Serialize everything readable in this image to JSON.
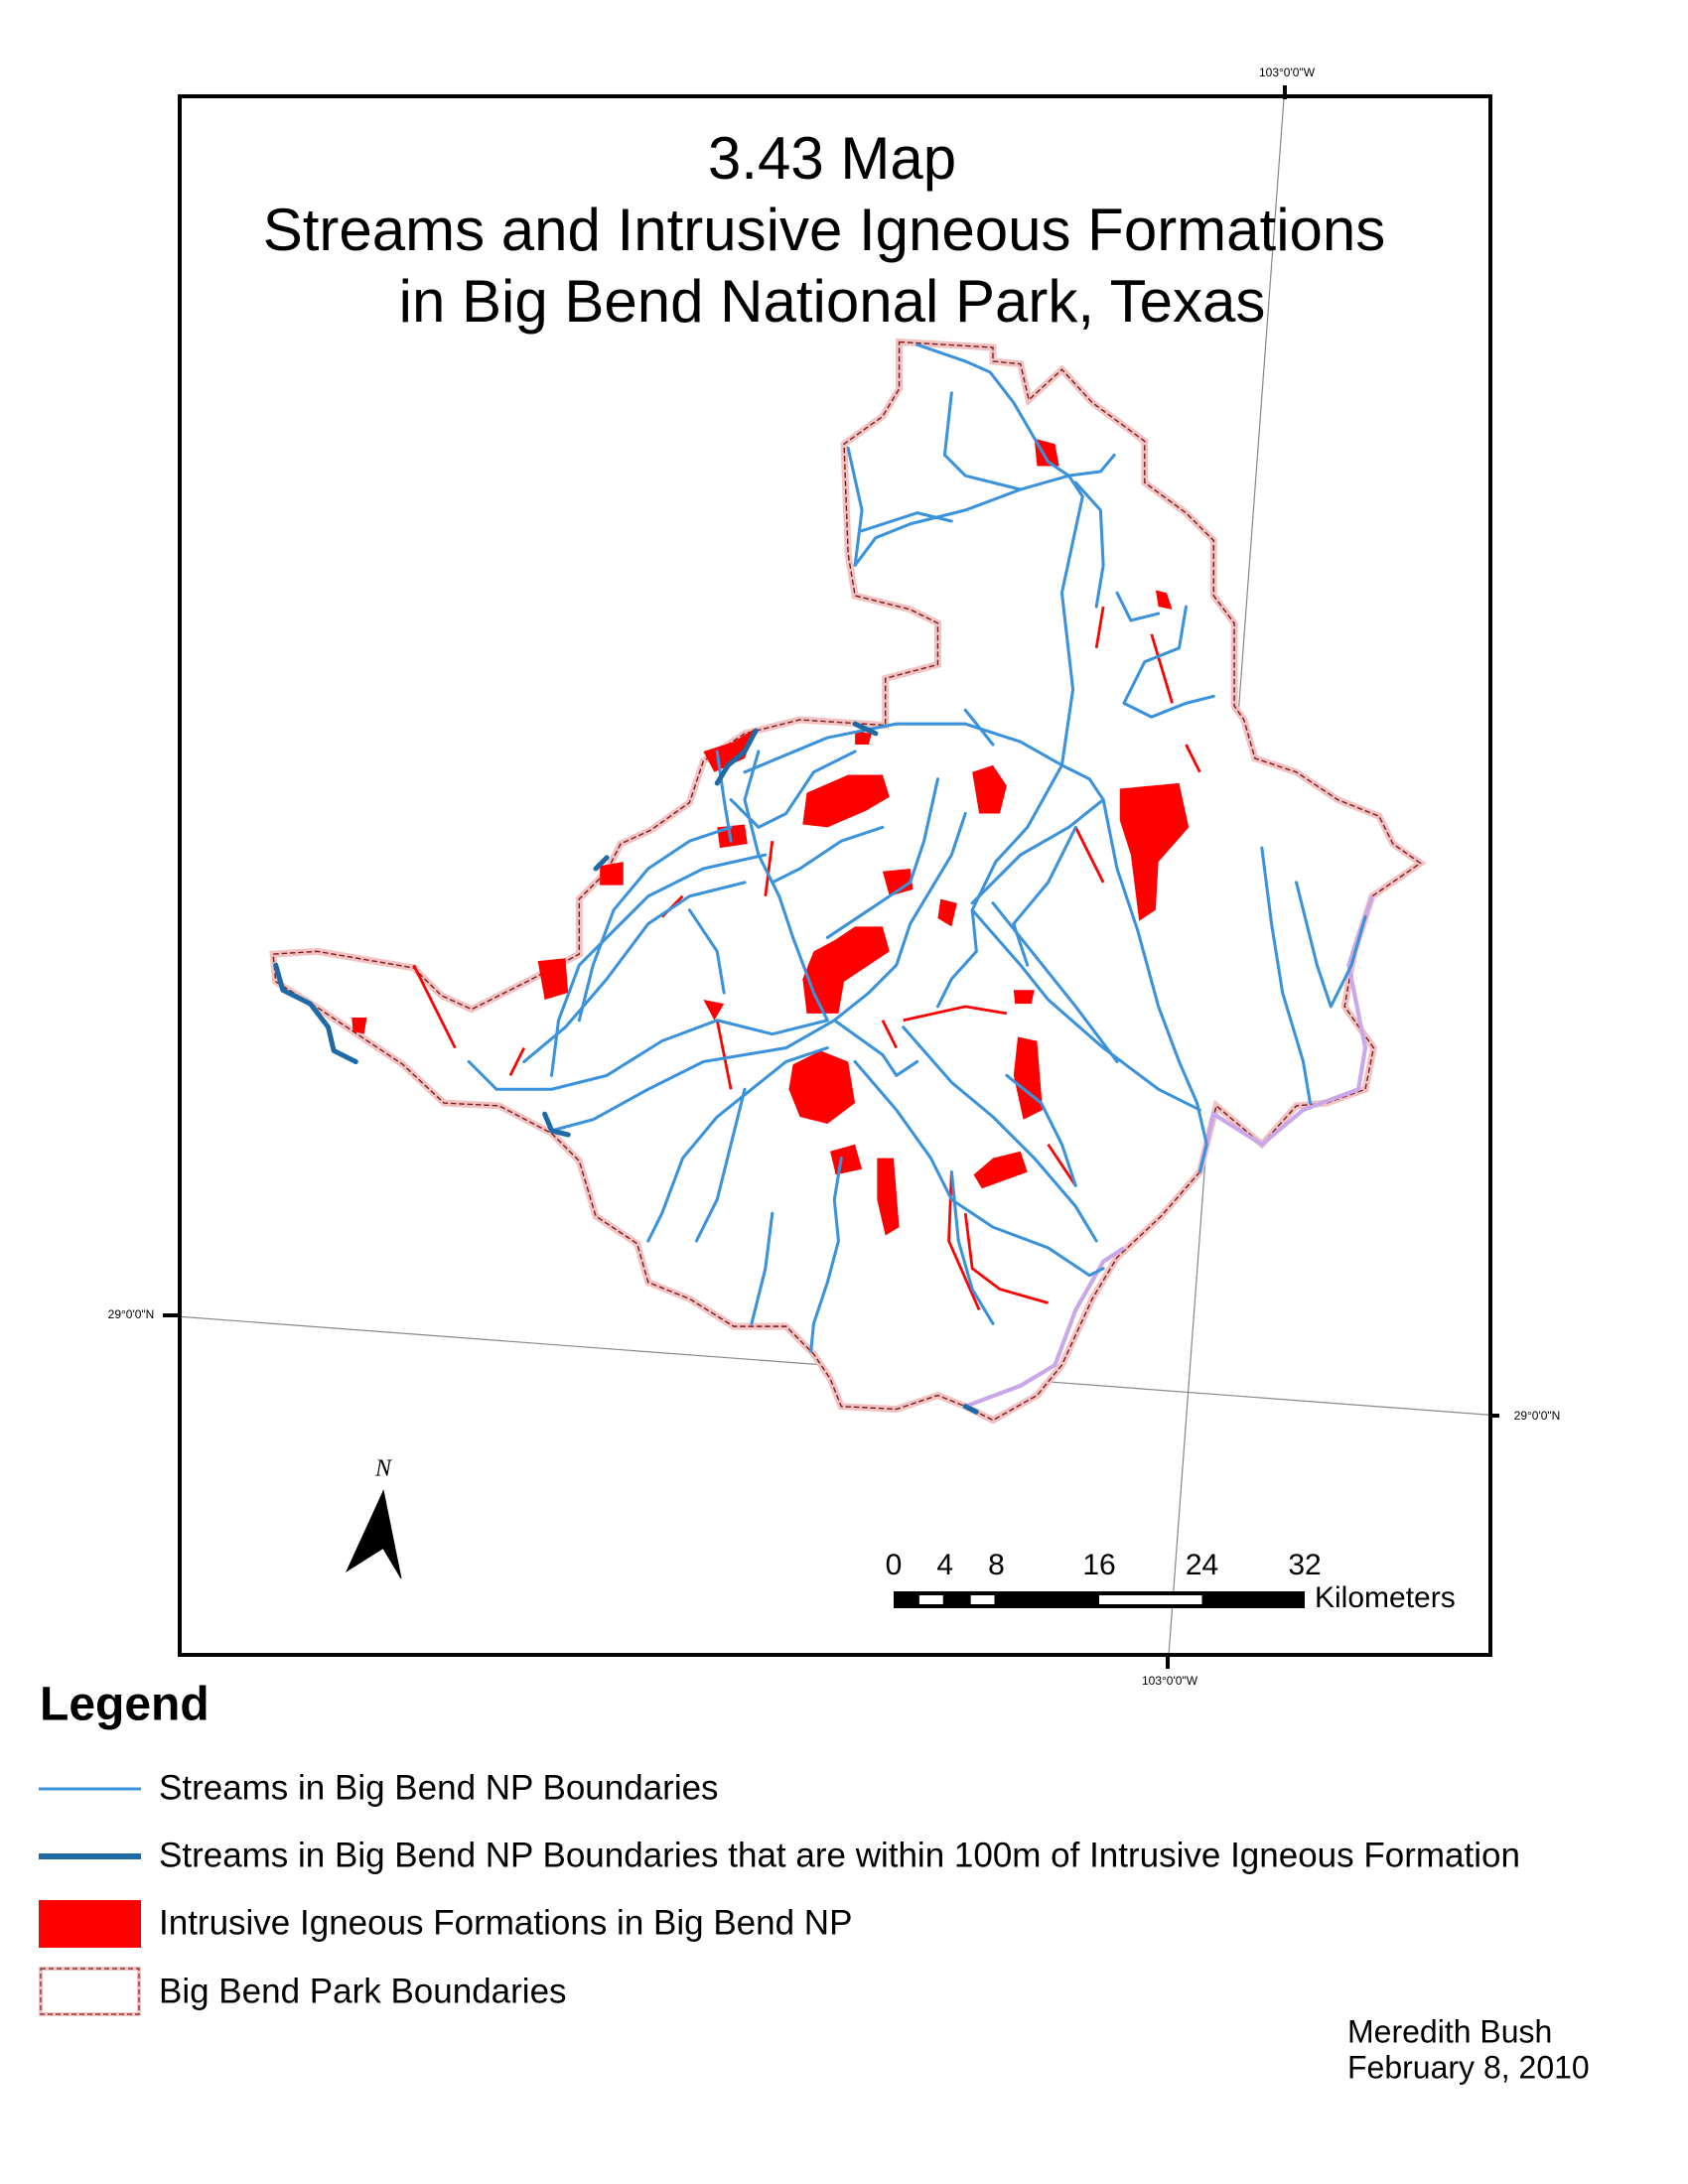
{
  "title": [
    "3.43 Map",
    "Streams and Intrusive Igneous Formations",
    "in Big Bend National Park, Texas"
  ],
  "graticule": {
    "longitude_top": "103°0'0\"W",
    "longitude_bottom": "103°0'0\"W",
    "latitude_left": "29°0'0\"N",
    "latitude_right": "29°0'0\"N"
  },
  "north_arrow": "N",
  "scale_bar": {
    "ticks": [
      0,
      4,
      8,
      16,
      24,
      32
    ],
    "unit": "Kilometers"
  },
  "legend": {
    "title": "Legend",
    "items": [
      "Streams in Big Bend NP Boundaries",
      "Streams in Big Bend NP Boundaries that are within 100m of Intrusive Igneous Formation",
      "Intrusive Igneous Formations in Big Bend NP",
      "Big Bend Park Boundaries"
    ]
  },
  "credits": {
    "author": "Meredith Bush",
    "date": "February 8, 2010"
  }
}
